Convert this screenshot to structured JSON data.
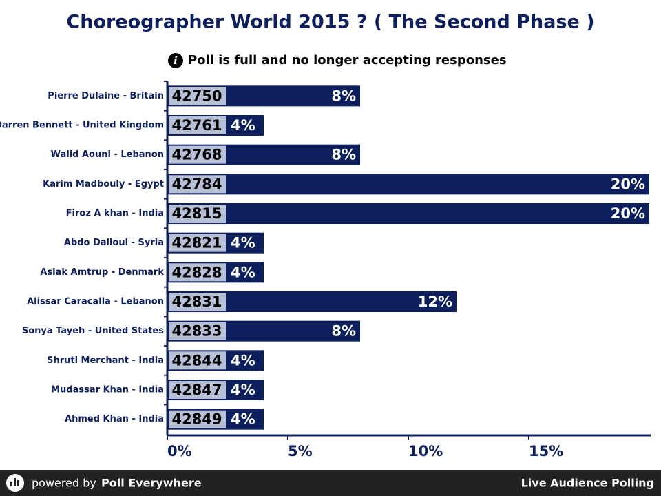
{
  "chart_data": {
    "type": "bar",
    "title": "Choreographer World 2015 ? ( The Second Phase )",
    "notice": "Poll is full and no longer accepting responses",
    "categories": [
      "Pierre Dulaine - Britain",
      "Darren Bennett - United Kingdom",
      "Walid Aouni - Lebanon",
      "Karim Madbouly - Egypt",
      "Firoz A khan - India",
      "Abdo Dalloul - Syria",
      "Aslak Amtrup - Denmark",
      "Alissar Caracalla - Lebanon",
      "Sonya Tayeh - United States",
      "Shruti Merchant - India",
      "Mudassar Khan - India",
      "Ahmed Khan - India"
    ],
    "codes": [
      42750,
      42761,
      42768,
      42784,
      42815,
      42821,
      42828,
      42831,
      42833,
      42844,
      42847,
      42849
    ],
    "values": [
      8,
      4,
      8,
      20,
      20,
      4,
      4,
      12,
      8,
      4,
      4,
      4
    ],
    "value_labels": [
      "8%",
      "4%",
      "8%",
      "20%",
      "20%",
      "4%",
      "4%",
      "12%",
      "8%",
      "4%",
      "4%",
      "4%"
    ],
    "color": "#0d1f5c",
    "xlim": [
      0,
      20
    ],
    "xticks": [
      {
        "value": 0,
        "label": "0%"
      },
      {
        "value": 5,
        "label": "5%"
      },
      {
        "value": 10,
        "label": "10%"
      },
      {
        "value": 15,
        "label": "15%"
      }
    ]
  },
  "footer": {
    "powered_by": "powered by",
    "brand": "Poll Everywhere",
    "tagline": "Live Audience Polling"
  }
}
